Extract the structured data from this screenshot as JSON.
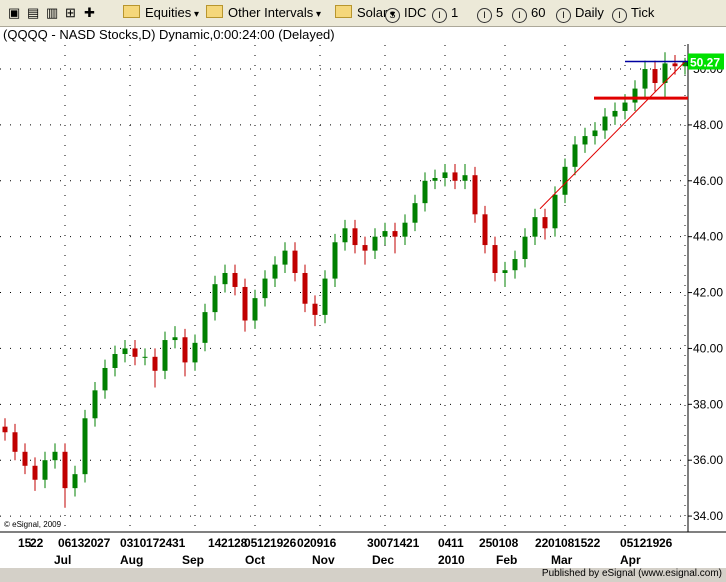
{
  "toolbar": {
    "items": [
      "Equities",
      "Other Intervals",
      "Solar",
      "IDC",
      "1",
      "5",
      "60",
      "Daily",
      "Tick"
    ]
  },
  "chart_data": {
    "type": "candlestick",
    "title": "(QQQQ - NASD Stocks,D) Dynamic,0:00:24:00 (Delayed)",
    "series": [
      {
        "name": "QQQQ",
        "up_color": "#008000",
        "down_color": "#c00000",
        "open": [
          37.2,
          37.0,
          36.3,
          35.8,
          35.3,
          36.0,
          36.3,
          35.0,
          35.5,
          37.5,
          38.5,
          39.3,
          39.8,
          40.0,
          39.7,
          39.7,
          39.2,
          40.3,
          40.4,
          39.5,
          40.2,
          41.3,
          42.3,
          42.7,
          42.2,
          41.0,
          41.8,
          42.5,
          43.0,
          43.5,
          42.7,
          41.6,
          41.2,
          42.5,
          43.8,
          44.3,
          43.7,
          43.5,
          44.0,
          44.2,
          44.0,
          44.5,
          45.2,
          46.0,
          46.1,
          46.3,
          46.0,
          46.2,
          44.8,
          43.7,
          42.7,
          42.8,
          43.2,
          44.0,
          44.7,
          44.3,
          45.5,
          46.5,
          47.3,
          47.6,
          47.8,
          48.3,
          48.5,
          48.8,
          49.3,
          50.0,
          49.5,
          50.2,
          50.1
        ],
        "high": [
          37.5,
          37.3,
          36.6,
          36.1,
          36.3,
          36.6,
          36.6,
          35.8,
          37.8,
          38.8,
          39.6,
          40.1,
          40.3,
          40.3,
          40.0,
          40.0,
          40.6,
          40.8,
          40.7,
          40.5,
          41.6,
          42.6,
          43.0,
          43.0,
          42.5,
          42.1,
          42.8,
          43.3,
          43.8,
          43.8,
          43.0,
          41.9,
          42.8,
          44.1,
          44.6,
          44.6,
          44.0,
          44.3,
          44.5,
          44.5,
          44.8,
          45.5,
          46.3,
          46.4,
          46.6,
          46.6,
          46.6,
          46.5,
          45.1,
          44.0,
          43.1,
          43.5,
          44.3,
          45.0,
          45.0,
          45.8,
          46.8,
          47.6,
          47.9,
          48.1,
          48.6,
          48.8,
          49.1,
          49.6,
          50.3,
          50.3,
          50.6,
          50.5,
          50.4
        ],
        "low": [
          36.7,
          36.0,
          35.5,
          34.9,
          35.0,
          35.7,
          34.3,
          34.7,
          35.2,
          37.2,
          38.2,
          39.0,
          39.5,
          39.4,
          39.4,
          38.6,
          38.9,
          40.0,
          39.0,
          39.2,
          39.9,
          41.0,
          42.0,
          41.9,
          40.6,
          40.7,
          41.5,
          42.2,
          42.7,
          42.4,
          41.3,
          40.8,
          40.9,
          42.2,
          43.5,
          43.4,
          43.0,
          43.2,
          43.7,
          43.4,
          43.7,
          44.2,
          44.9,
          45.7,
          45.8,
          45.7,
          45.7,
          44.5,
          43.4,
          42.4,
          42.2,
          42.5,
          42.9,
          43.7,
          43.9,
          44.0,
          45.2,
          46.2,
          47.0,
          47.3,
          47.5,
          48.0,
          48.2,
          48.5,
          49.0,
          49.2,
          49.0,
          49.8,
          49.8
        ],
        "close": [
          37.0,
          36.3,
          35.8,
          35.3,
          36.0,
          36.3,
          35.0,
          35.5,
          37.5,
          38.5,
          39.3,
          39.8,
          40.0,
          39.7,
          39.7,
          39.2,
          40.3,
          40.4,
          39.5,
          40.2,
          41.3,
          42.3,
          42.7,
          42.2,
          41.0,
          41.8,
          42.5,
          43.0,
          43.5,
          42.7,
          41.6,
          41.2,
          42.5,
          43.8,
          44.3,
          43.7,
          43.5,
          44.0,
          44.2,
          44.0,
          44.5,
          45.2,
          46.0,
          46.1,
          46.3,
          46.0,
          46.2,
          44.8,
          43.7,
          42.7,
          42.8,
          43.2,
          44.0,
          44.7,
          44.3,
          45.5,
          46.5,
          47.3,
          47.6,
          47.8,
          48.3,
          48.5,
          48.8,
          49.3,
          50.0,
          49.5,
          50.2,
          50.1,
          50.27
        ]
      }
    ],
    "ylim": [
      33.43,
      50.86
    ],
    "yticks": [
      {
        "value": 34,
        "label": "34.00"
      },
      {
        "value": 36,
        "label": "36.00"
      },
      {
        "value": 38,
        "label": "38.00"
      },
      {
        "value": 40,
        "label": "40.00"
      },
      {
        "value": 42,
        "label": "42.00"
      },
      {
        "value": 44,
        "label": "44.00"
      },
      {
        "value": 46,
        "label": "46.00"
      },
      {
        "value": 48,
        "label": "48.00"
      },
      {
        "value": 50,
        "label": "50.00"
      }
    ],
    "grid": true,
    "day_labels": [
      "15",
      "22",
      "06",
      "13",
      "20",
      "27",
      "03",
      "10",
      "17",
      "24",
      "31",
      "14",
      "21",
      "28",
      "05",
      "12",
      "19",
      "26",
      "02",
      "09",
      "16",
      "30",
      "07",
      "14",
      "21",
      "04",
      "11",
      "25",
      "01",
      "08",
      "22",
      "01",
      "08",
      "15",
      "22",
      "05",
      "12",
      "19",
      "26"
    ],
    "month_labels": [
      "Jul",
      "Aug",
      "Sep",
      "Oct",
      "Nov",
      "Dec",
      "2010",
      "Feb",
      "Mar",
      "Apr"
    ],
    "last_price": {
      "value": 50.27,
      "label": "50.27",
      "color": "#0000a0"
    },
    "support_line": {
      "value": 48.96,
      "color": "#e00000"
    },
    "trendline": {
      "values": [
        45.0,
        50.3
      ],
      "color": "#e00000"
    },
    "copyright": "© eSignal, 2009"
  },
  "footer": "Published by eSignal (www.esignal.com)"
}
